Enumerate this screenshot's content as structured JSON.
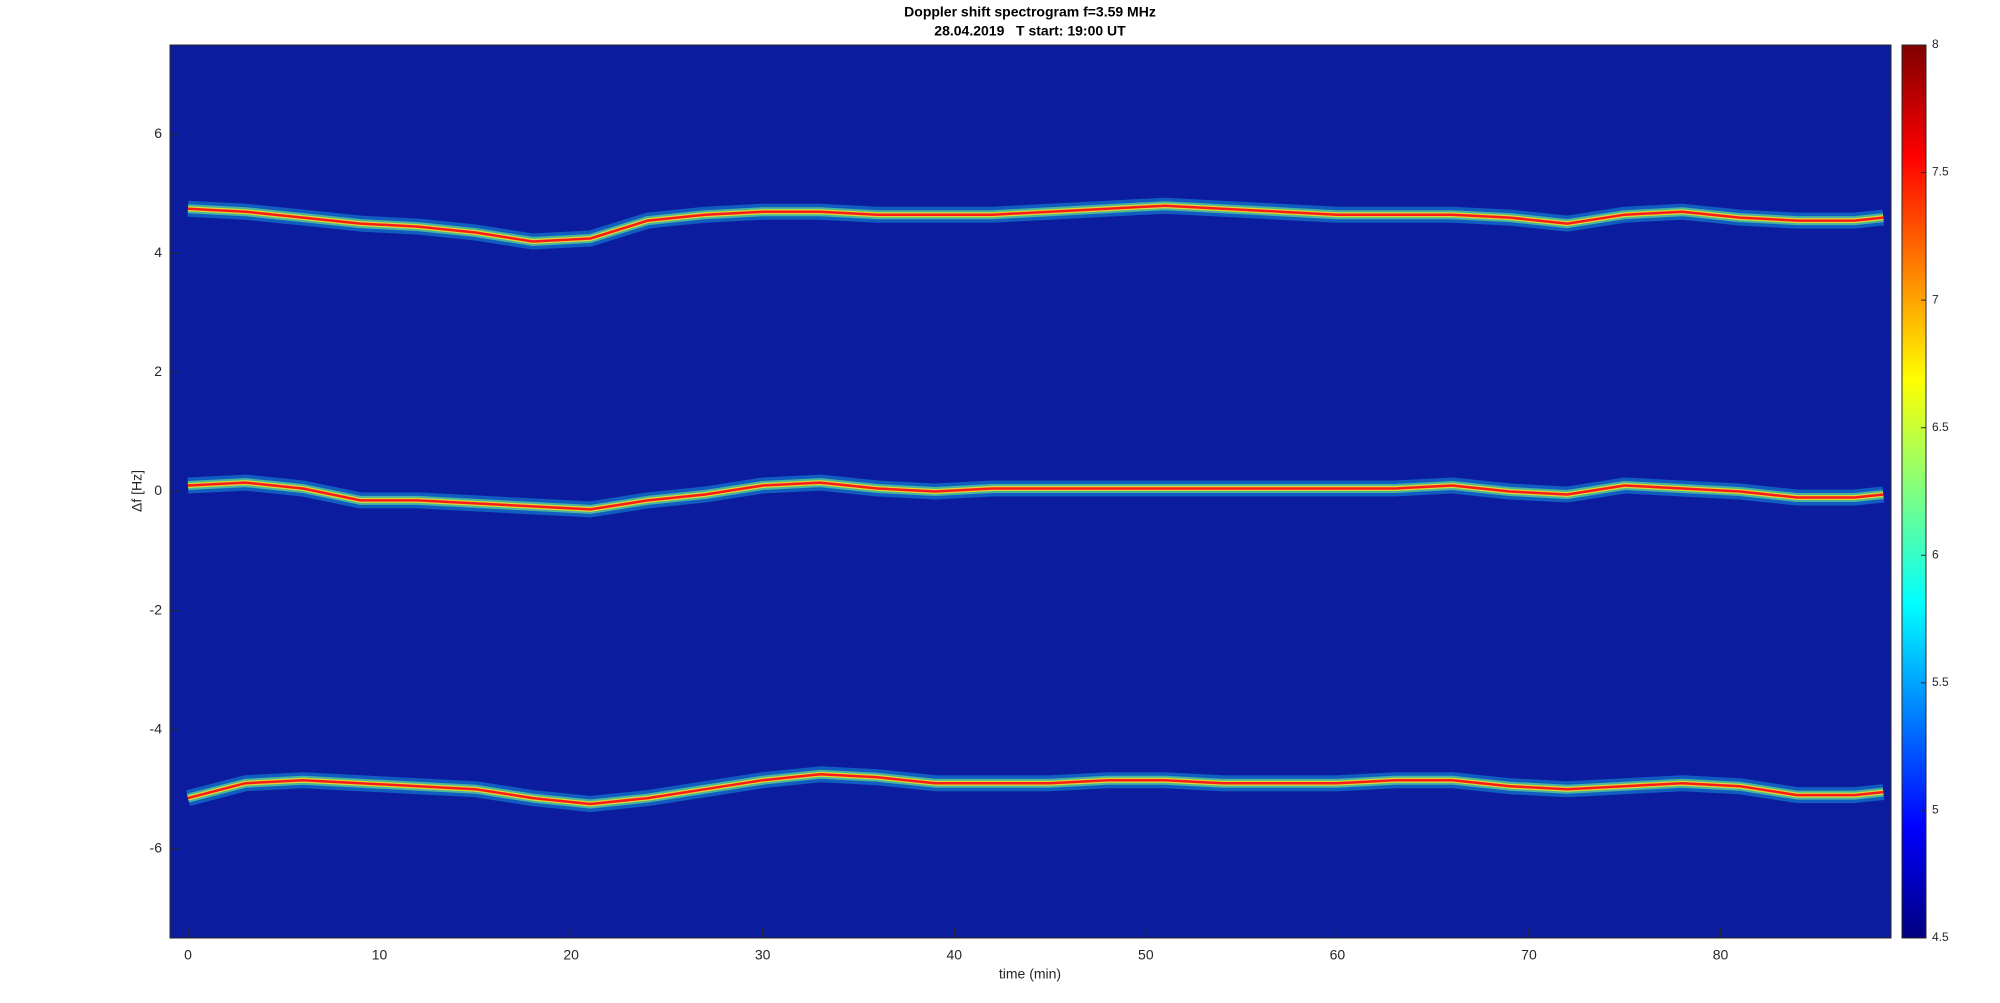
{
  "chart_data": {
    "type": "spectrogram",
    "title": "Doppler shift spectrogram f=3.59 MHz",
    "subtitle": "28.04.2019   T start: 19:00 UT",
    "xlabel": "time (min)",
    "ylabel": "Δf [Hz]",
    "xlim": [
      -0.94,
      88.9
    ],
    "xticks": [
      0,
      10,
      20,
      30,
      40,
      50,
      60,
      70,
      80
    ],
    "ylim": [
      -7.5,
      7.5
    ],
    "yticks": [
      -6,
      -4,
      -2,
      0,
      2,
      4,
      6
    ],
    "clim": [
      4.5,
      8
    ],
    "cticks": [
      4.5,
      5,
      5.5,
      6,
      6.5,
      7,
      7.5,
      8
    ],
    "colormap": "jet",
    "background_color": "#0b1d9e",
    "x": [
      0,
      3,
      6,
      9,
      12,
      15,
      18,
      21,
      24,
      27,
      30,
      33,
      36,
      39,
      42,
      45,
      48,
      51,
      54,
      57,
      60,
      63,
      66,
      69,
      72,
      75,
      78,
      81,
      84,
      87,
      88.5
    ],
    "series": [
      {
        "color": "#ff1a1a",
        "values": [
          4.75,
          4.7,
          4.6,
          4.5,
          4.45,
          4.35,
          4.2,
          4.25,
          4.55,
          4.65,
          4.7,
          4.7,
          4.65,
          4.65,
          4.65,
          4.7,
          4.75,
          4.8,
          4.75,
          4.7,
          4.65,
          4.65,
          4.65,
          4.6,
          4.5,
          4.65,
          4.7,
          4.6,
          4.55,
          4.55,
          4.6
        ]
      },
      {
        "color": "#ff1a1a",
        "values": [
          0.1,
          0.15,
          0.05,
          -0.15,
          -0.15,
          -0.2,
          -0.25,
          -0.3,
          -0.15,
          -0.05,
          0.1,
          0.15,
          0.05,
          0,
          0.05,
          0.05,
          0.05,
          0.05,
          0.05,
          0.05,
          0.05,
          0.05,
          0.1,
          0,
          -0.05,
          0.1,
          0.05,
          0,
          -0.1,
          -0.1,
          -0.05
        ]
      },
      {
        "color": "#ff1a1a",
        "values": [
          -5.15,
          -4.9,
          -4.85,
          -4.9,
          -4.95,
          -5.0,
          -5.15,
          -5.25,
          -5.15,
          -5.0,
          -4.85,
          -4.75,
          -4.8,
          -4.9,
          -4.9,
          -4.9,
          -4.85,
          -4.85,
          -4.9,
          -4.9,
          -4.9,
          -4.85,
          -4.85,
          -4.95,
          -5.0,
          -4.95,
          -4.9,
          -4.95,
          -5.1,
          -5.1,
          -5.05
        ]
      }
    ]
  }
}
